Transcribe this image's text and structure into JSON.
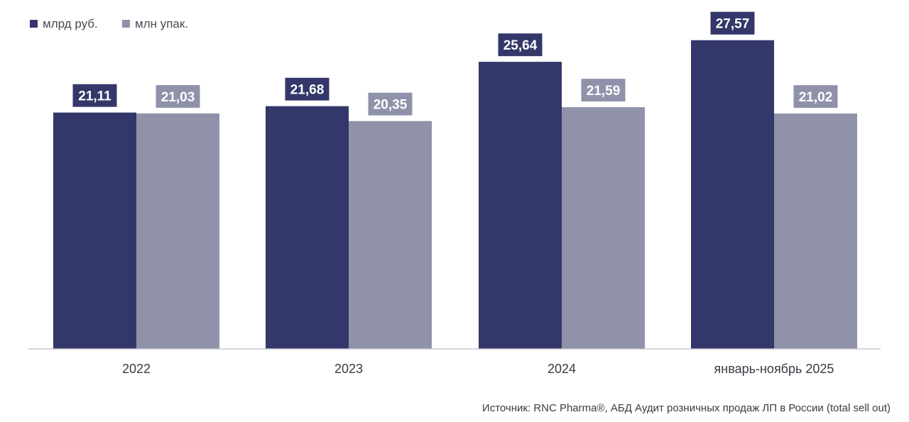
{
  "colors": {
    "series_primary": "#343769",
    "series_secondary": "#9092aa",
    "axis": "#c9c9cf"
  },
  "chart_data": {
    "type": "bar",
    "title": "",
    "xlabel": "",
    "ylabel": "",
    "grid": false,
    "legend_position": "top-left",
    "categories": [
      "2022",
      "2023",
      "2024",
      "январь-ноябрь 2025"
    ],
    "series": [
      {
        "name": "млрд руб.",
        "values": [
          21.11,
          21.68,
          25.64,
          27.57
        ],
        "labels": [
          "21,11",
          "21,68",
          "25,64",
          "27,57"
        ]
      },
      {
        "name": "млн упак.",
        "values": [
          21.03,
          20.35,
          21.59,
          21.02
        ],
        "labels": [
          "21,03",
          "20,35",
          "21,59",
          "21,02"
        ]
      }
    ],
    "ylim": [
      0,
      28.5
    ]
  },
  "source": "Источник: RNC Pharma®, АБД Аудит розничных продаж ЛП в России (total sell out)"
}
